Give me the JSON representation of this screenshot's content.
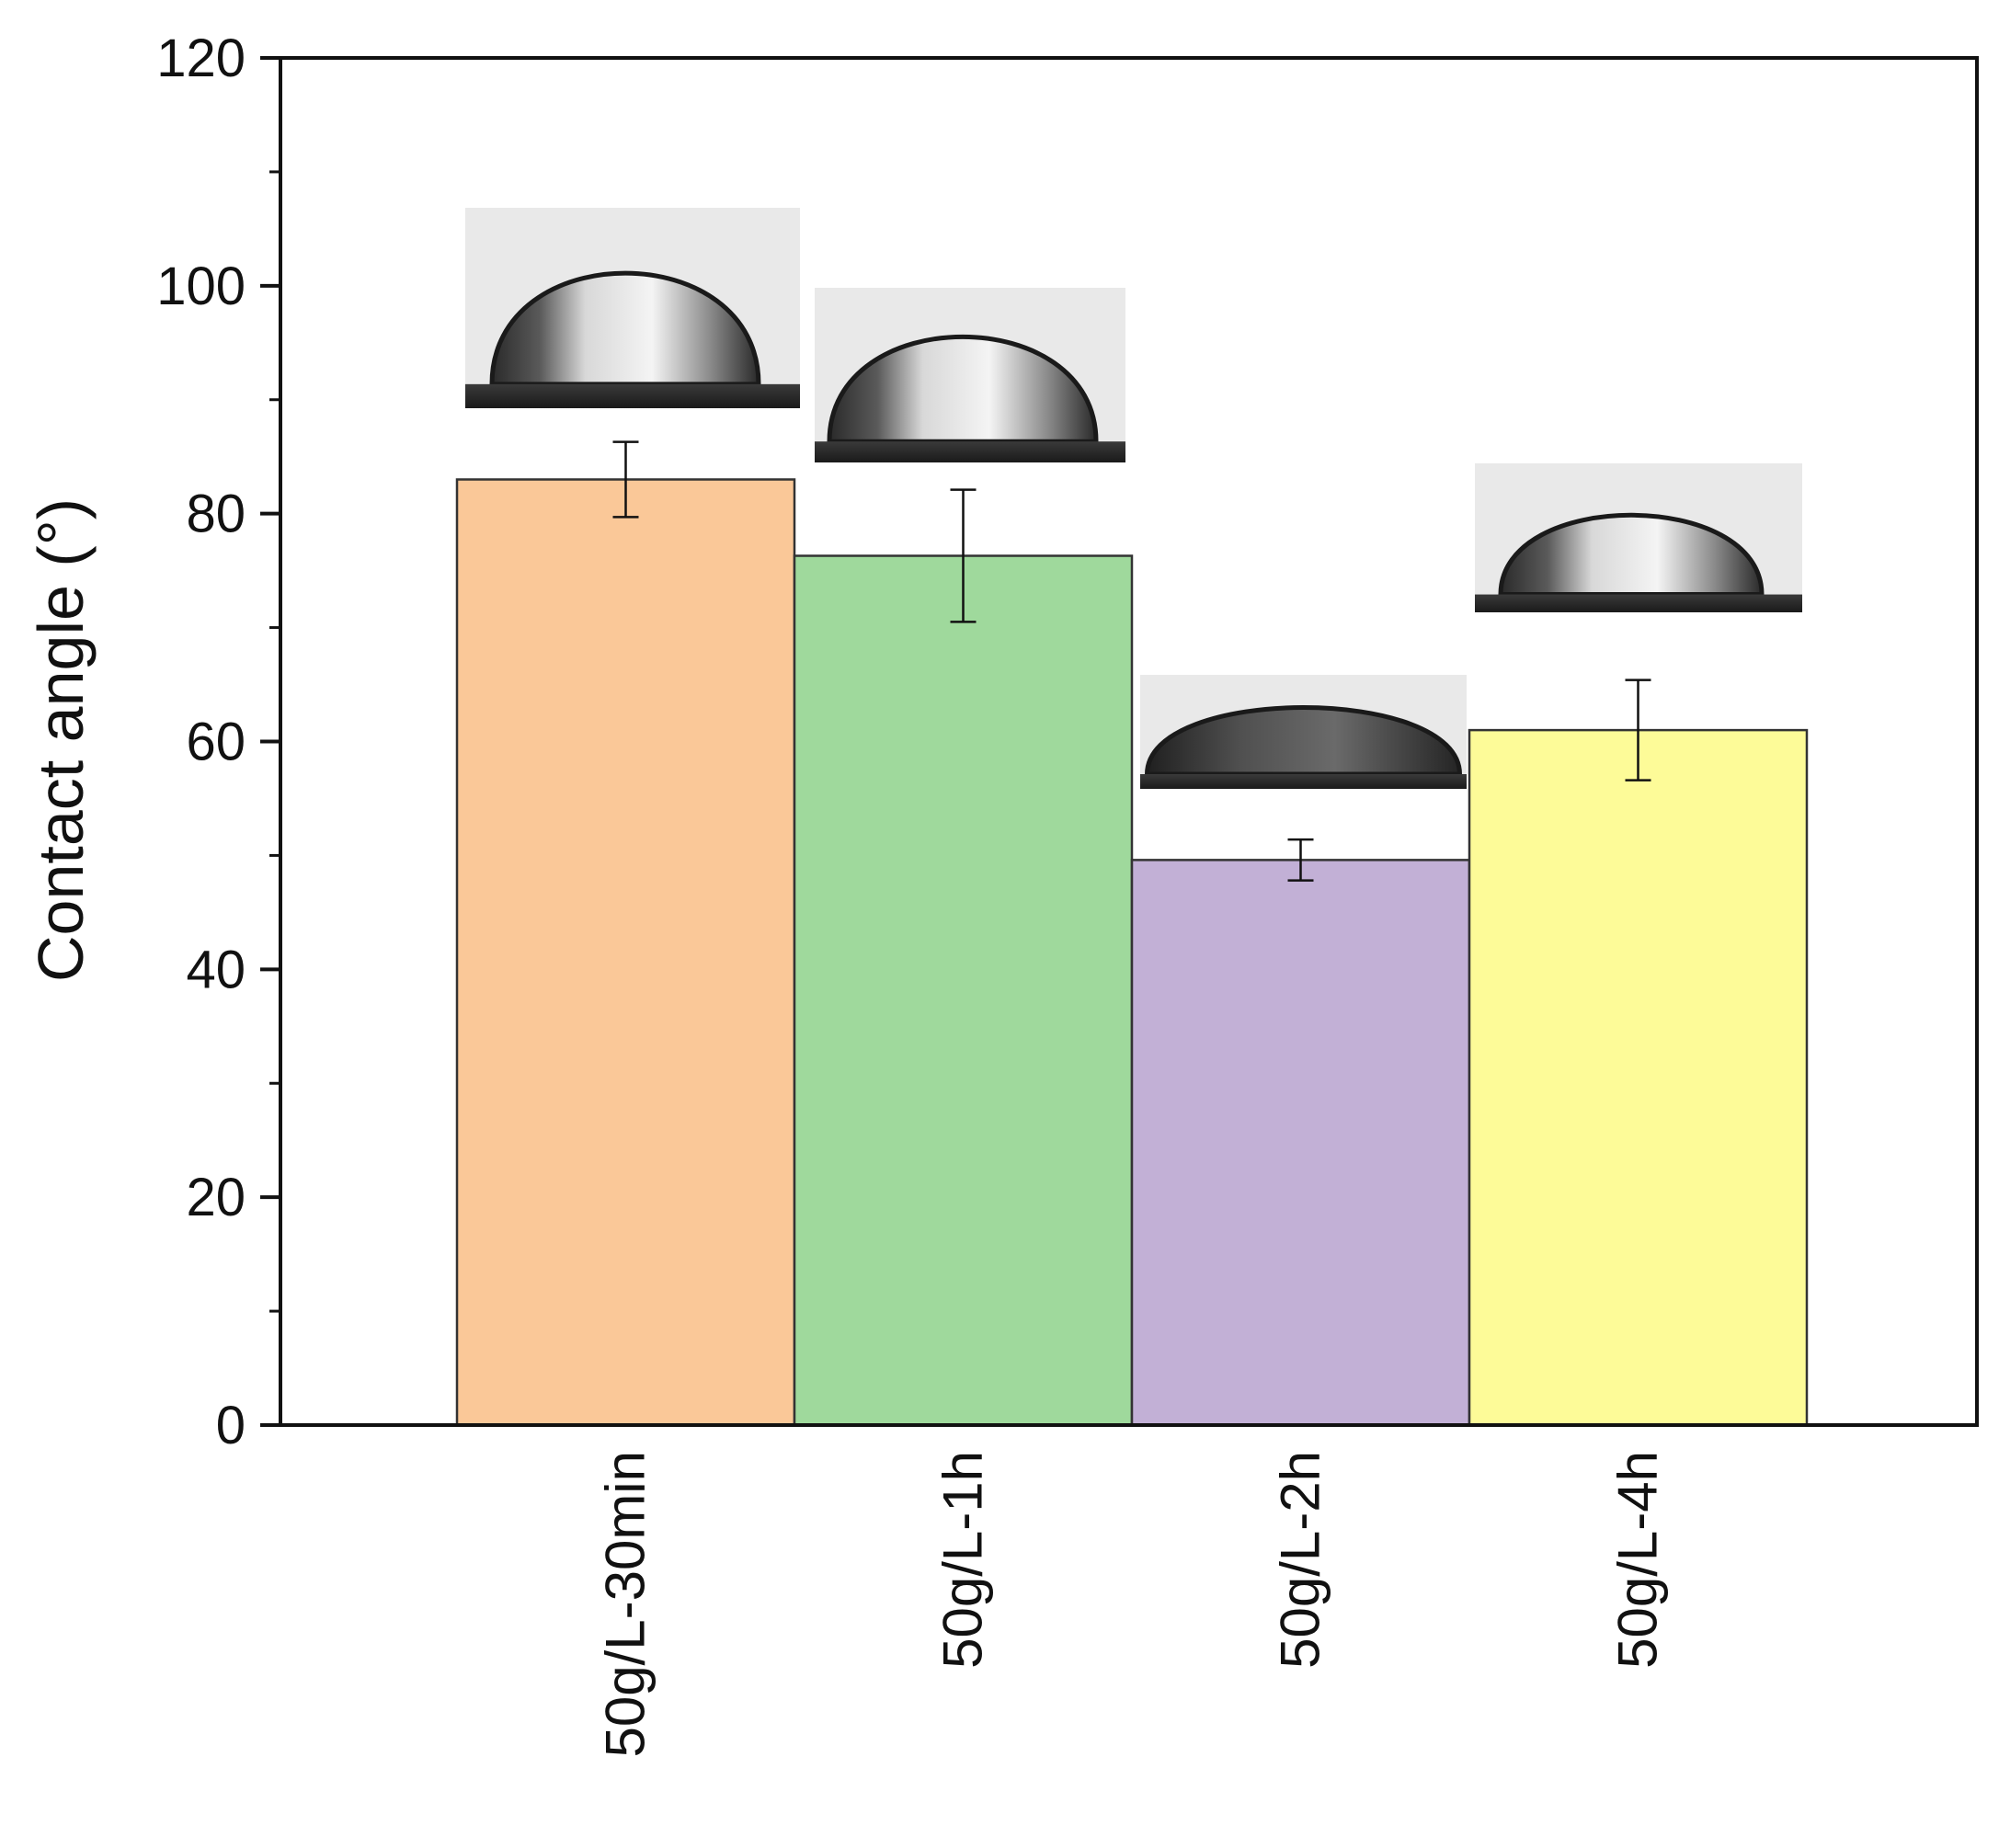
{
  "chart_data": {
    "type": "bar",
    "categories": [
      "50g/L-30min",
      "50g/L-1h",
      "50g/L-2h",
      "50g/L-4h"
    ],
    "values": [
      83,
      76.3,
      49.6,
      61
    ],
    "errors": [
      3.3,
      5.8,
      1.8,
      4.4
    ],
    "colors": [
      "#fac898",
      "#9fd99c",
      "#c2b0d6",
      "#fdfb98"
    ],
    "ylabel": "Contact angle (°)",
    "xlabel": "",
    "ylim": [
      0,
      120
    ],
    "yticks": [
      0,
      20,
      40,
      60,
      80,
      100,
      120
    ],
    "grid": false,
    "insets": [
      "water-droplet-photo",
      "water-droplet-photo",
      "water-droplet-photo",
      "water-droplet-photo"
    ]
  }
}
